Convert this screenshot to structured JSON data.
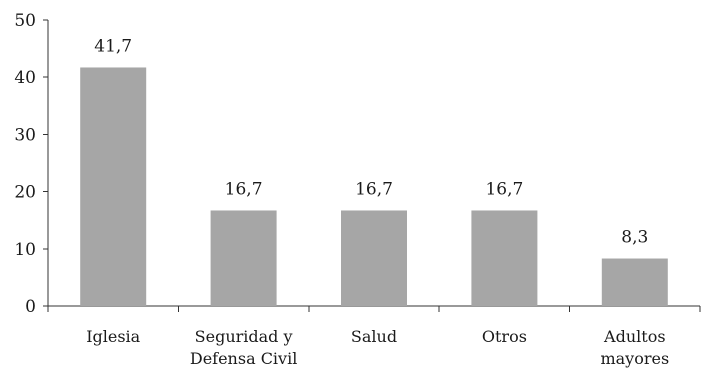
{
  "chart_data": {
    "type": "bar",
    "title": "",
    "xlabel": "",
    "ylabel": "",
    "ylim": [
      0,
      50
    ],
    "yticks": [
      0,
      10,
      20,
      30,
      40,
      50
    ],
    "grid": false,
    "legend": "none",
    "categories": [
      [
        "Iglesia"
      ],
      [
        "Seguridad y",
        "Defensa Civil"
      ],
      [
        "Salud"
      ],
      [
        "Otros"
      ],
      [
        "Adultos",
        "mayores"
      ]
    ],
    "values": [
      41.7,
      16.7,
      16.7,
      16.7,
      8.3
    ],
    "data_labels": [
      "41,7",
      "16,7",
      "16,7",
      "16,7",
      "8,3"
    ],
    "bar_color": "#a6a6a6",
    "axis_color": "#333333"
  }
}
